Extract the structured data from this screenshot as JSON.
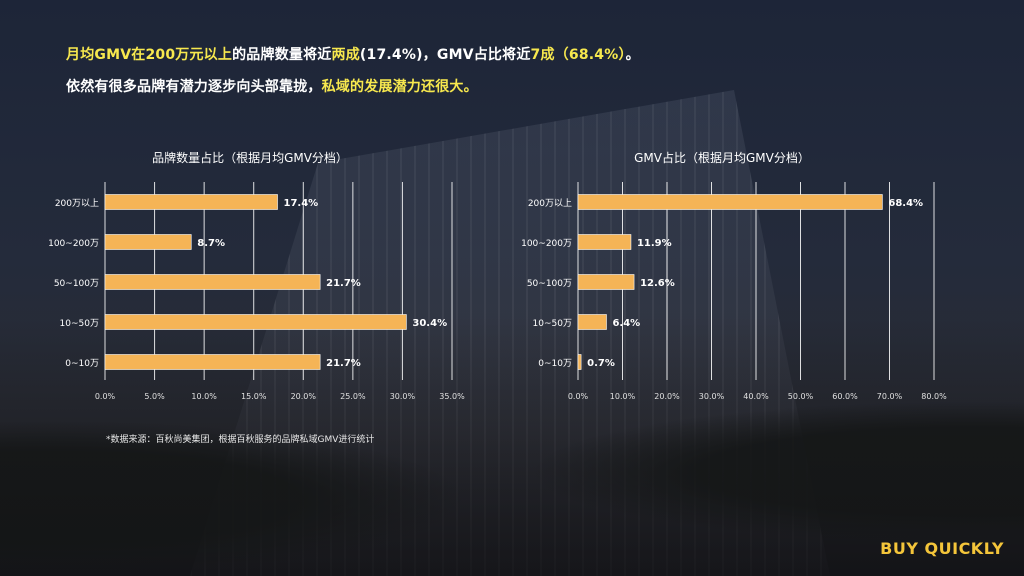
{
  "headline": {
    "line1": [
      {
        "text": "月均GMV在200万元以上",
        "hl": true
      },
      {
        "text": "的品牌数量将近",
        "hl": false
      },
      {
        "text": "两成",
        "hl": true
      },
      {
        "text": "(17.4%)，GMV占比将近",
        "hl": false
      },
      {
        "text": "7成（68.4%）",
        "hl": true
      },
      {
        "text": "。",
        "hl": false
      }
    ],
    "line2": [
      {
        "text": "依然有很多品牌有潜力逐步向头部靠拢，",
        "hl": false
      },
      {
        "text": "私域的发展潜力还很大。",
        "hl": true
      }
    ]
  },
  "colors": {
    "bar": "#f5b456",
    "grid": "#ffffff",
    "highlight": "#f7e84e",
    "brand": "#f4c53a"
  },
  "chart_data": [
    {
      "type": "bar",
      "orientation": "horizontal",
      "title": "品牌数量占比（根据月均GMV分档）",
      "categories": [
        "200万以上",
        "100~200万",
        "50~100万",
        "10~50万",
        "0~10万"
      ],
      "values": [
        17.4,
        8.7,
        21.7,
        30.4,
        21.7
      ],
      "value_labels": [
        "17.4%",
        "8.7%",
        "21.7%",
        "30.4%",
        "21.7%"
      ],
      "ticks": [
        "0.0%",
        "5.0%",
        "10.0%",
        "15.0%",
        "20.0%",
        "25.0%",
        "30.0%",
        "35.0%"
      ],
      "xlim": [
        0,
        35
      ],
      "grid": true
    },
    {
      "type": "bar",
      "orientation": "horizontal",
      "title": "GMV占比（根据月均GMV分档）",
      "categories": [
        "200万以上",
        "100~200万",
        "50~100万",
        "10~50万",
        "0~10万"
      ],
      "values": [
        68.4,
        11.9,
        12.6,
        6.4,
        0.7
      ],
      "value_labels": [
        "68.4%",
        "11.9%",
        "12.6%",
        "6.4%",
        "0.7%"
      ],
      "ticks": [
        "0.0%",
        "10.0%",
        "20.0%",
        "30.0%",
        "40.0%",
        "50.0%",
        "60.0%",
        "70.0%",
        "80.0%"
      ],
      "xlim": [
        0,
        80
      ],
      "grid": true
    }
  ],
  "source_note": "*数据来源：百秋尚美集团，根据百秋服务的品牌私域GMV进行统计",
  "brand": "BUY QUICKLY"
}
